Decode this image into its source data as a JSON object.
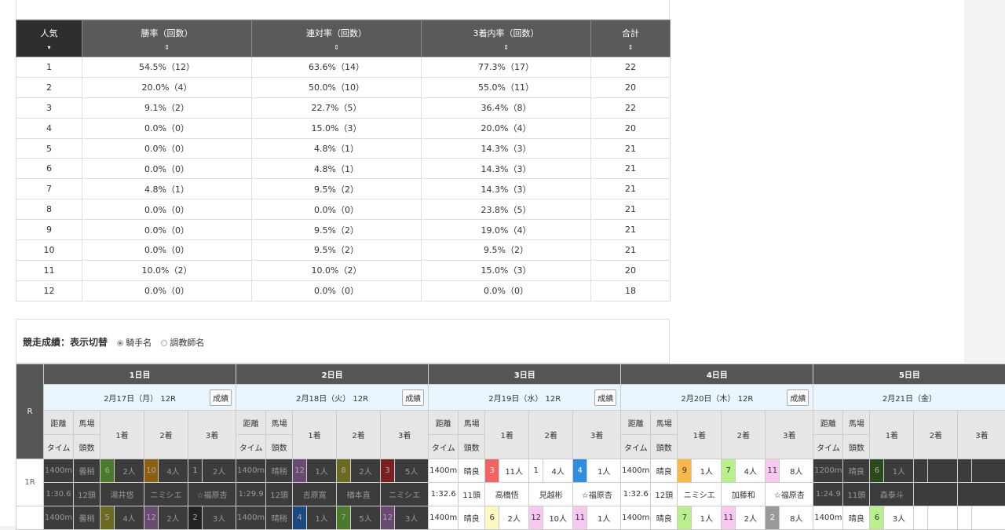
{
  "popularity_table": {
    "headers": [
      "人気",
      "勝率（回数）",
      "連対率（回数）",
      "3着内率（回数）",
      "合計"
    ],
    "sort_icons": [
      "▾",
      "⇕",
      "⇕",
      "⇕",
      "⇕"
    ],
    "rows": [
      [
        "1",
        "54.5%（12）",
        "63.6%（14）",
        "77.3%（17）",
        "22"
      ],
      [
        "2",
        "20.0%（4）",
        "50.0%（10）",
        "55.0%（11）",
        "20"
      ],
      [
        "3",
        "9.1%（2）",
        "22.7%（5）",
        "36.4%（8）",
        "22"
      ],
      [
        "4",
        "0.0%（0）",
        "15.0%（3）",
        "20.0%（4）",
        "20"
      ],
      [
        "5",
        "0.0%（0）",
        "4.8%（1）",
        "14.3%（3）",
        "21"
      ],
      [
        "6",
        "0.0%（0）",
        "4.8%（1）",
        "14.3%（3）",
        "21"
      ],
      [
        "7",
        "4.8%（1）",
        "9.5%（2）",
        "14.3%（3）",
        "21"
      ],
      [
        "8",
        "0.0%（0）",
        "0.0%（0）",
        "23.8%（5）",
        "21"
      ],
      [
        "9",
        "0.0%（0）",
        "9.5%（2）",
        "19.0%（4）",
        "21"
      ],
      [
        "10",
        "0.0%（0）",
        "9.5%（2）",
        "9.5%（2）",
        "21"
      ],
      [
        "11",
        "10.0%（2）",
        "10.0%（2）",
        "15.0%（3）",
        "20"
      ],
      [
        "12",
        "0.0%（0）",
        "0.0%（0）",
        "0.0%（0）",
        "18"
      ]
    ]
  },
  "results": {
    "title": "競走成績：表示切替",
    "options": [
      {
        "label": "騎手名",
        "selected": true
      },
      {
        "label": "調教師名",
        "selected": false
      }
    ],
    "r_label": "R",
    "sub_headers": {
      "dist": "距離",
      "track": "馬場",
      "time": "タイム",
      "heads": "頭数",
      "first": "1着",
      "second": "2着",
      "third": "3着"
    },
    "result_button": "成績",
    "days": [
      {
        "label": "1日目",
        "date": "2月17日（月） 12R",
        "dimmed": true,
        "races": [
          {
            "r": "1R",
            "dist": "1400m",
            "track": "曇稍",
            "places": [
              [
                "6",
                "2人",
                "#4a7a2a"
              ],
              [
                "10",
                "4人",
                "#8a6010"
              ],
              [
                "1",
                "2人",
                "#3c3c3c"
              ]
            ],
            "time": "1:30.6",
            "heads": "12頭",
            "names": [
              "湯井悠",
              "ニミシエ",
              "☆福原杏"
            ]
          },
          {
            "r": "",
            "dist": "1400m",
            "track": "曇稍",
            "places": [
              [
                "5",
                "4人",
                "#6a6a20"
              ],
              [
                "12",
                "2人",
                "#6a4a70"
              ],
              [
                "2",
                "3人",
                "#222222"
              ]
            ]
          }
        ]
      },
      {
        "label": "2日目",
        "date": "2月18日（火） 12R",
        "dimmed": true,
        "races": [
          {
            "r": "1R",
            "dist": "1400m",
            "track": "晴稍",
            "places": [
              [
                "12",
                "1人",
                "#6a4a70"
              ],
              [
                "8",
                "2人",
                "#6a6a20"
              ],
              [
                "3",
                "5人",
                "#7a2020"
              ]
            ],
            "time": "1:29.9",
            "heads": "12頭",
            "names": [
              "吉原寛",
              "楢本直",
              "ニミシエ"
            ]
          },
          {
            "r": "",
            "dist": "1400m",
            "track": "晴稍",
            "places": [
              [
                "4",
                "1人",
                "#1a4a80"
              ],
              [
                "7",
                "5人",
                "#4a7a2a"
              ],
              [
                "12",
                "3人",
                "#6a4a70"
              ]
            ]
          }
        ]
      },
      {
        "label": "3日目",
        "date": "2月19日（水） 12R",
        "dimmed": false,
        "races": [
          {
            "r": "1R",
            "dist": "1400m",
            "track": "晴良",
            "places": [
              [
                "3",
                "11人",
                "#f26464"
              ],
              [
                "1",
                "4人",
                "#ffffff"
              ],
              [
                "4",
                "1人",
                "#2f8ee0"
              ]
            ],
            "time": "1:32.6",
            "heads": "11頭",
            "names": [
              "高橋悟",
              "見越彬",
              "☆福原杏"
            ]
          },
          {
            "r": "",
            "dist": "1400m",
            "track": "晴良",
            "places": [
              [
                "6",
                "2人",
                "#fdf8c0"
              ],
              [
                "12",
                "10人",
                "#f8c8f0"
              ],
              [
                "11",
                "1人",
                "#f8c8f0"
              ]
            ]
          }
        ]
      },
      {
        "label": "4日目",
        "date": "2月20日（木） 12R",
        "dimmed": false,
        "races": [
          {
            "r": "1R",
            "dist": "1400m",
            "track": "晴良",
            "places": [
              [
                "9",
                "1人",
                "#f8b84a"
              ],
              [
                "7",
                "4人",
                "#b8f090"
              ],
              [
                "11",
                "8人",
                "#f8c8f0"
              ]
            ],
            "time": "1:32.6",
            "heads": "12頭",
            "names": [
              "ニミシエ",
              "加藤和",
              "☆福原杏"
            ]
          },
          {
            "r": "",
            "dist": "1400m",
            "track": "晴良",
            "places": [
              [
                "7",
                "1人",
                "#b8f090"
              ],
              [
                "11",
                "2人",
                "#f8c8f0"
              ],
              [
                "2",
                "8人",
                "#999999"
              ]
            ]
          }
        ]
      },
      {
        "label": "5日目",
        "date": "2月21日（金）",
        "dimmed": true,
        "races": [
          {
            "r": "1R",
            "dist": "1200m",
            "track": "晴良",
            "places": [
              [
                "6",
                "1人",
                "#2a4a1a"
              ],
              [
                "",
                "",
                ""
              ],
              [
                "",
                "",
                ""
              ]
            ],
            "time": "1:24.9",
            "heads": "11頭",
            "names": [
              "森泰斗",
              "",
              ""
            ]
          },
          {
            "r": "",
            "dist": "1400m",
            "track": "晴良",
            "places": [
              [
                "6",
                "3人",
                "#b8f090"
              ],
              [
                "",
                "",
                ""
              ],
              [
                "",
                "",
                ""
              ]
            ],
            "dim_row": false
          }
        ]
      }
    ]
  }
}
